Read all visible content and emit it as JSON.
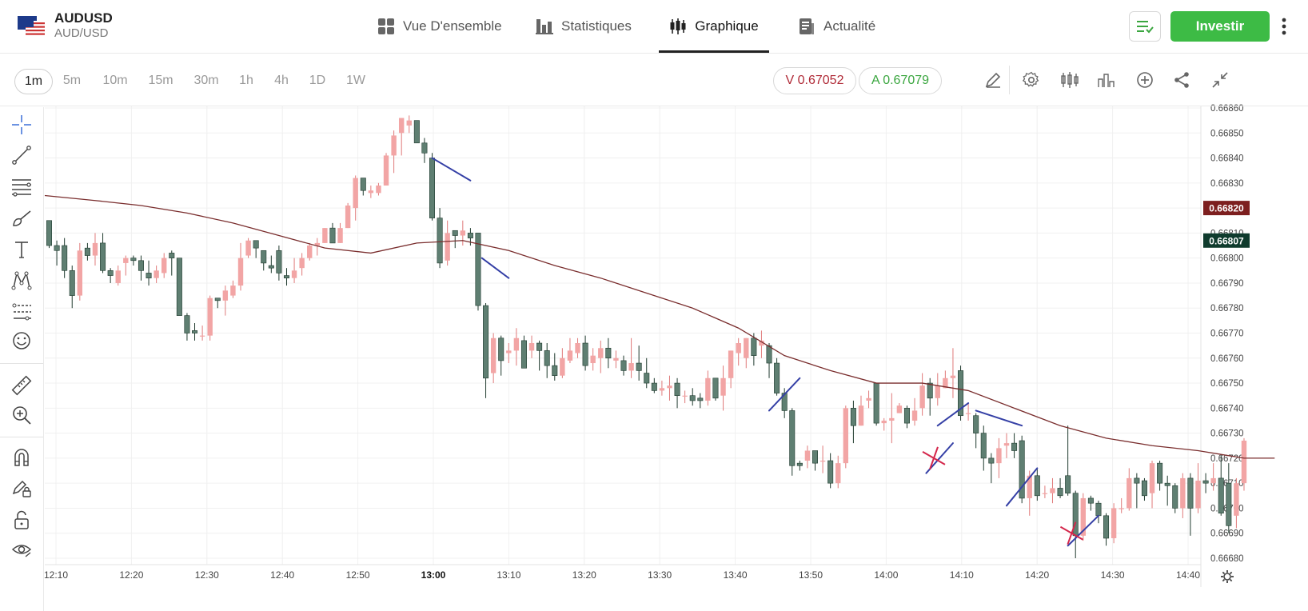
{
  "header": {
    "symbol": "AUDUSD",
    "pair": "AUD/USD",
    "tabs": [
      {
        "label": "Vue D'ensemble",
        "icon": "grid-icon"
      },
      {
        "label": "Statistiques",
        "icon": "bar-chart-icon"
      },
      {
        "label": "Graphique",
        "icon": "candlestick-icon",
        "active": true
      },
      {
        "label": "Actualité",
        "icon": "news-icon"
      }
    ],
    "invest_label": "Investir"
  },
  "toolbar": {
    "timeframes": [
      "1m",
      "5m",
      "10m",
      "15m",
      "30m",
      "1h",
      "4h",
      "1D",
      "1W"
    ],
    "active_timeframe": "1m",
    "sell_label": "V 0.67052",
    "buy_label": "A 0.67079",
    "icons": [
      "pencil-icon",
      "gear-icon",
      "candles-icon",
      "indicator-icon",
      "plus-circle-icon",
      "share-icon",
      "collapse-icon"
    ]
  },
  "left_tools": [
    "crosshair-icon",
    "trendline-icon",
    "fib-icon",
    "brush-icon",
    "text-icon",
    "pattern-icon",
    "forecast-icon",
    "emoji-icon",
    "ruler-icon",
    "zoom-in-icon",
    "magnet-icon",
    "lock-pencil-icon",
    "unlock-icon",
    "eye-icon"
  ],
  "colors": {
    "up": "#f2a5a5",
    "down": "#5f7f72",
    "ma": "#7a2e2e",
    "drawing_blue": "#3540a6",
    "drawing_red": "#d4264b",
    "sell": "#b02a37",
    "buy": "#3aa63f",
    "invest": "#3dbb45"
  },
  "chart_data": {
    "type": "candlestick",
    "x_ticks": [
      "12:10",
      "12:20",
      "12:30",
      "12:40",
      "12:50",
      "13:00",
      "13:10",
      "13:20",
      "13:30",
      "13:40",
      "13:50",
      "14:00",
      "14:10",
      "14:20",
      "14:30",
      "14:40"
    ],
    "bold_tick": "13:00",
    "y_ticks": [
      "0.66680",
      "0.66690",
      "0.66700",
      "0.66710",
      "0.66720",
      "0.66730",
      "0.66740",
      "0.66750",
      "0.66760",
      "0.66770",
      "0.66780",
      "0.66790",
      "0.66800",
      "0.66810",
      "0.66820",
      "0.66830",
      "0.66840",
      "0.66850",
      "0.66860"
    ],
    "ylim": [
      0.66675,
      0.66863
    ],
    "price_labels": [
      {
        "text": "0.66820",
        "value": 0.6682,
        "color": "#7d1f1f"
      },
      {
        "text": "0.66807",
        "value": 0.66807,
        "color": "#0f3b2d"
      }
    ],
    "candles": [
      [
        0.66815,
        0.66805,
        0.66815,
        0.66804
      ],
      [
        0.66805,
        0.66803,
        0.66807,
        0.66797
      ],
      [
        0.66805,
        0.66795,
        0.66808,
        0.66792
      ],
      [
        0.66795,
        0.66785,
        0.66797,
        0.6678
      ],
      [
        0.66785,
        0.66803,
        0.66806,
        0.66783
      ],
      [
        0.66804,
        0.66801,
        0.66806,
        0.66799
      ],
      [
        0.66801,
        0.66806,
        0.6681,
        0.66797
      ],
      [
        0.66806,
        0.66795,
        0.6681,
        0.66794
      ],
      [
        0.66795,
        0.66793,
        0.66796,
        0.6679
      ],
      [
        0.6679,
        0.66795,
        0.66797,
        0.66789
      ],
      [
        0.66798,
        0.668,
        0.66801,
        0.66793
      ],
      [
        0.668,
        0.66799,
        0.66801,
        0.66797
      ],
      [
        0.66799,
        0.66795,
        0.66801,
        0.66791
      ],
      [
        0.66794,
        0.66792,
        0.66799,
        0.66789
      ],
      [
        0.66792,
        0.66795,
        0.66797,
        0.6679
      ],
      [
        0.66794,
        0.668,
        0.66802,
        0.66792
      ],
      [
        0.66802,
        0.668,
        0.66803,
        0.66793
      ],
      [
        0.668,
        0.66777,
        0.668,
        0.66777
      ],
      [
        0.66777,
        0.6677,
        0.66778,
        0.66767
      ],
      [
        0.66771,
        0.6677,
        0.66774,
        0.66767
      ],
      [
        0.66769,
        0.66769,
        0.66773,
        0.66767
      ],
      [
        0.66769,
        0.66784,
        0.66785,
        0.66767
      ],
      [
        0.66784,
        0.66783,
        0.66784,
        0.6678
      ],
      [
        0.66783,
        0.66787,
        0.66789,
        0.66777
      ],
      [
        0.66785,
        0.66789,
        0.66791,
        0.66784
      ],
      [
        0.66789,
        0.668,
        0.66806,
        0.66787
      ],
      [
        0.66801,
        0.66807,
        0.66808,
        0.668
      ],
      [
        0.66807,
        0.66804,
        0.66807,
        0.668
      ],
      [
        0.66803,
        0.66798,
        0.66803,
        0.66795
      ],
      [
        0.66797,
        0.66796,
        0.66801,
        0.66794
      ],
      [
        0.66803,
        0.66794,
        0.66805,
        0.66791
      ],
      [
        0.66793,
        0.66792,
        0.66796,
        0.66789
      ],
      [
        0.66792,
        0.66795,
        0.668,
        0.6679
      ],
      [
        0.66796,
        0.668,
        0.66802,
        0.66793
      ],
      [
        0.668,
        0.66805,
        0.66806,
        0.66799
      ],
      [
        0.66805,
        0.66806,
        0.66808,
        0.66801
      ],
      [
        0.66806,
        0.66812,
        0.66812,
        0.66806
      ],
      [
        0.66812,
        0.66806,
        0.66814,
        0.66806
      ],
      [
        0.66806,
        0.66812,
        0.66814,
        0.66806
      ],
      [
        0.66812,
        0.66821,
        0.66822,
        0.66812
      ],
      [
        0.6682,
        0.66832,
        0.66833,
        0.66815
      ],
      [
        0.66832,
        0.66827,
        0.66832,
        0.66825
      ],
      [
        0.66826,
        0.66827,
        0.66829,
        0.66824
      ],
      [
        0.66826,
        0.66829,
        0.6683,
        0.66825
      ],
      [
        0.66829,
        0.66841,
        0.66842,
        0.66829
      ],
      [
        0.66841,
        0.66849,
        0.66851,
        0.66834
      ],
      [
        0.6685,
        0.66856,
        0.66856,
        0.66841
      ],
      [
        0.66853,
        0.66855,
        0.66857,
        0.6685
      ],
      [
        0.66855,
        0.66846,
        0.66855,
        0.66846
      ],
      [
        0.66846,
        0.66842,
        0.66848,
        0.66838
      ],
      [
        0.6684,
        0.66816,
        0.66842,
        0.66815
      ],
      [
        0.66816,
        0.66798,
        0.6682,
        0.66796
      ],
      [
        0.66799,
        0.6681,
        0.66815,
        0.66797
      ],
      [
        0.66811,
        0.66809,
        0.66811,
        0.66804
      ],
      [
        0.66809,
        0.66811,
        0.66815,
        0.66805
      ],
      [
        0.6681,
        0.66808,
        0.66812,
        0.66805
      ],
      [
        0.6681,
        0.66781,
        0.6681,
        0.66779
      ],
      [
        0.66781,
        0.66752,
        0.66782,
        0.66744
      ],
      [
        0.66754,
        0.66768,
        0.6677,
        0.6675
      ],
      [
        0.66768,
        0.66759,
        0.66769,
        0.66753
      ],
      [
        0.66762,
        0.66763,
        0.66766,
        0.66758
      ],
      [
        0.66763,
        0.66768,
        0.66772,
        0.66757
      ],
      [
        0.66767,
        0.66756,
        0.66769,
        0.66756
      ],
      [
        0.66763,
        0.66766,
        0.66769,
        0.6676
      ],
      [
        0.66766,
        0.66763,
        0.66767,
        0.66755
      ],
      [
        0.66763,
        0.66757,
        0.66766,
        0.66752
      ],
      [
        0.66757,
        0.66753,
        0.66762,
        0.66751
      ],
      [
        0.66753,
        0.6676,
        0.66764,
        0.66752
      ],
      [
        0.66759,
        0.66763,
        0.66768,
        0.66758
      ],
      [
        0.66762,
        0.66766,
        0.66768,
        0.6676
      ],
      [
        0.66766,
        0.66757,
        0.66769,
        0.66755
      ],
      [
        0.66758,
        0.66761,
        0.66764,
        0.66755
      ],
      [
        0.6676,
        0.66764,
        0.66767,
        0.66754
      ],
      [
        0.66764,
        0.6676,
        0.66768,
        0.66756
      ],
      [
        0.66759,
        0.6676,
        0.66763,
        0.66756
      ],
      [
        0.66759,
        0.66755,
        0.66761,
        0.66753
      ],
      [
        0.66755,
        0.66758,
        0.66768,
        0.66752
      ],
      [
        0.66758,
        0.66755,
        0.66765,
        0.66751
      ],
      [
        0.66754,
        0.6675,
        0.6676,
        0.66748
      ],
      [
        0.6675,
        0.66747,
        0.66752,
        0.66746
      ],
      [
        0.66747,
        0.66748,
        0.66751,
        0.66745
      ],
      [
        0.66748,
        0.66749,
        0.66753,
        0.66743
      ],
      [
        0.6675,
        0.66745,
        0.66752,
        0.6674
      ],
      [
        0.66745,
        0.66745,
        0.66747,
        0.66742
      ],
      [
        0.66745,
        0.66743,
        0.66748,
        0.66741
      ],
      [
        0.66744,
        0.66743,
        0.66746,
        0.6674
      ],
      [
        0.66743,
        0.66752,
        0.66755,
        0.66741
      ],
      [
        0.66752,
        0.66744,
        0.66752,
        0.66743
      ],
      [
        0.66745,
        0.66752,
        0.66757,
        0.66739
      ],
      [
        0.66752,
        0.66763,
        0.66763,
        0.66748
      ],
      [
        0.66762,
        0.66766,
        0.66768,
        0.66757
      ],
      [
        0.6676,
        0.66768,
        0.66768,
        0.66756
      ],
      [
        0.66768,
        0.66761,
        0.6677,
        0.66757
      ],
      [
        0.66765,
        0.66767,
        0.66771,
        0.6676
      ],
      [
        0.66765,
        0.66758,
        0.66766,
        0.66752
      ],
      [
        0.66758,
        0.66746,
        0.6676,
        0.66745
      ],
      [
        0.66746,
        0.66739,
        0.66748,
        0.66736
      ],
      [
        0.66739,
        0.66717,
        0.6674,
        0.66713
      ],
      [
        0.66718,
        0.66717,
        0.66719,
        0.66715
      ],
      [
        0.66719,
        0.66723,
        0.66725,
        0.66716
      ],
      [
        0.66723,
        0.66718,
        0.66723,
        0.66715
      ],
      [
        0.66719,
        0.66719,
        0.66725,
        0.66714
      ],
      [
        0.66719,
        0.6671,
        0.66722,
        0.66708
      ],
      [
        0.6671,
        0.66718,
        0.66721,
        0.66708
      ],
      [
        0.66718,
        0.6674,
        0.66741,
        0.66716
      ],
      [
        0.6674,
        0.66733,
        0.66743,
        0.66726
      ],
      [
        0.66733,
        0.66741,
        0.66745,
        0.66733
      ],
      [
        0.66743,
        0.66744,
        0.66747,
        0.6674
      ],
      [
        0.6675,
        0.66734,
        0.6675,
        0.66733
      ],
      [
        0.66734,
        0.66735,
        0.66736,
        0.66731
      ],
      [
        0.66735,
        0.66736,
        0.66746,
        0.66726
      ],
      [
        0.66738,
        0.66741,
        0.66742,
        0.66738
      ],
      [
        0.6674,
        0.66734,
        0.66741,
        0.66732
      ],
      [
        0.66735,
        0.66739,
        0.66744,
        0.66733
      ],
      [
        0.6674,
        0.66749,
        0.66754,
        0.66737
      ],
      [
        0.6675,
        0.66744,
        0.66752,
        0.66737
      ],
      [
        0.66744,
        0.66749,
        0.66754,
        0.66741
      ],
      [
        0.66748,
        0.66752,
        0.66755,
        0.66748
      ],
      [
        0.66752,
        0.66753,
        0.66764,
        0.66744
      ],
      [
        0.66755,
        0.66737,
        0.66757,
        0.66735
      ],
      [
        0.66738,
        0.66738,
        0.66742,
        0.66735
      ],
      [
        0.66737,
        0.6673,
        0.66738,
        0.66724
      ],
      [
        0.6673,
        0.6672,
        0.66733,
        0.66715
      ],
      [
        0.6672,
        0.66718,
        0.66722,
        0.6671
      ],
      [
        0.66718,
        0.66724,
        0.66728,
        0.66712
      ],
      [
        0.66725,
        0.66726,
        0.6673,
        0.6672
      ],
      [
        0.66726,
        0.66723,
        0.6673,
        0.6672
      ],
      [
        0.66727,
        0.66704,
        0.66729,
        0.66702
      ],
      [
        0.66704,
        0.66713,
        0.66715,
        0.66697
      ],
      [
        0.66713,
        0.66705,
        0.66716,
        0.66703
      ],
      [
        0.66706,
        0.66706,
        0.66709,
        0.66704
      ],
      [
        0.66706,
        0.66708,
        0.66712,
        0.66702
      ],
      [
        0.66708,
        0.66705,
        0.66712,
        0.66704
      ],
      [
        0.66713,
        0.66706,
        0.66733,
        0.66705
      ],
      [
        0.66706,
        0.66689,
        0.66707,
        0.6668
      ],
      [
        0.66689,
        0.66704,
        0.66706,
        0.66687
      ],
      [
        0.66704,
        0.66702,
        0.66705,
        0.66699
      ],
      [
        0.66702,
        0.66697,
        0.66703,
        0.66694
      ],
      [
        0.66697,
        0.66688,
        0.66698,
        0.66685
      ],
      [
        0.66688,
        0.667,
        0.66702,
        0.66686
      ],
      [
        0.667,
        0.667,
        0.66704,
        0.66698
      ],
      [
        0.667,
        0.66712,
        0.66716,
        0.66699
      ],
      [
        0.66712,
        0.6671,
        0.66714,
        0.667
      ],
      [
        0.66711,
        0.66705,
        0.66712,
        0.66703
      ],
      [
        0.66706,
        0.66718,
        0.66719,
        0.667
      ],
      [
        0.66718,
        0.6671,
        0.66719,
        0.66707
      ],
      [
        0.6671,
        0.66709,
        0.66713,
        0.66701
      ],
      [
        0.66709,
        0.667,
        0.6671,
        0.66698
      ],
      [
        0.667,
        0.66712,
        0.66714,
        0.66696
      ],
      [
        0.66712,
        0.667,
        0.66714,
        0.66689
      ],
      [
        0.667,
        0.66711,
        0.66718,
        0.66698
      ],
      [
        0.66711,
        0.6671,
        0.66714,
        0.66706
      ],
      [
        0.6671,
        0.66712,
        0.66718,
        0.66707
      ],
      [
        0.66712,
        0.66698,
        0.66721,
        0.66697
      ],
      [
        0.6671,
        0.66693,
        0.66718,
        0.6669
      ],
      [
        0.66697,
        0.6671,
        0.66712,
        0.66692
      ],
      [
        0.6671,
        0.66727,
        0.66728,
        0.66707
      ]
    ],
    "moving_average": [
      [
        0,
        0.66825
      ],
      [
        6,
        0.66823
      ],
      [
        12,
        0.66821
      ],
      [
        18,
        0.66818
      ],
      [
        24,
        0.66814
      ],
      [
        30,
        0.66809
      ],
      [
        36,
        0.66804
      ],
      [
        42,
        0.66802
      ],
      [
        48,
        0.66806
      ],
      [
        54,
        0.66807
      ],
      [
        60,
        0.66803
      ],
      [
        66,
        0.66797
      ],
      [
        72,
        0.66792
      ],
      [
        78,
        0.66786
      ],
      [
        84,
        0.6678
      ],
      [
        90,
        0.66772
      ],
      [
        96,
        0.66761
      ],
      [
        102,
        0.66755
      ],
      [
        108,
        0.6675
      ],
      [
        114,
        0.6675
      ],
      [
        120,
        0.66747
      ],
      [
        126,
        0.6674
      ],
      [
        132,
        0.66733
      ],
      [
        138,
        0.66728
      ],
      [
        144,
        0.66725
      ],
      [
        150,
        0.66723
      ],
      [
        156,
        0.6672
      ],
      [
        160,
        0.6672
      ]
    ],
    "drawings": [
      {
        "color": "blue",
        "from": [
          0.6684,
          50
        ],
        "to": [
          0.66831,
          55
        ]
      },
      {
        "color": "blue",
        "from": [
          0.668,
          56.5
        ],
        "to": [
          0.66792,
          60
        ]
      },
      {
        "color": "blue",
        "from": [
          0.66739,
          94
        ],
        "to": [
          0.66752,
          98
        ]
      },
      {
        "color": "blue",
        "from": [
          0.66714,
          114.5
        ],
        "to": [
          0.66726,
          118
        ]
      },
      {
        "color": "blue",
        "from": [
          0.66733,
          116
        ],
        "to": [
          0.66742,
          120
        ]
      },
      {
        "color": "blue",
        "from": [
          0.66739,
          121
        ],
        "to": [
          0.66733,
          127
        ]
      },
      {
        "color": "blue",
        "from": [
          0.66701,
          125
        ],
        "to": [
          0.66716,
          129
        ]
      },
      {
        "color": "blue",
        "from": [
          0.66685,
          133
        ],
        "to": [
          0.66697,
          137
        ]
      },
      {
        "color": "red-x",
        "at": [
          0.6672,
          115.5
        ]
      },
      {
        "color": "red-x",
        "at": [
          0.6669,
          133.5
        ]
      }
    ]
  }
}
